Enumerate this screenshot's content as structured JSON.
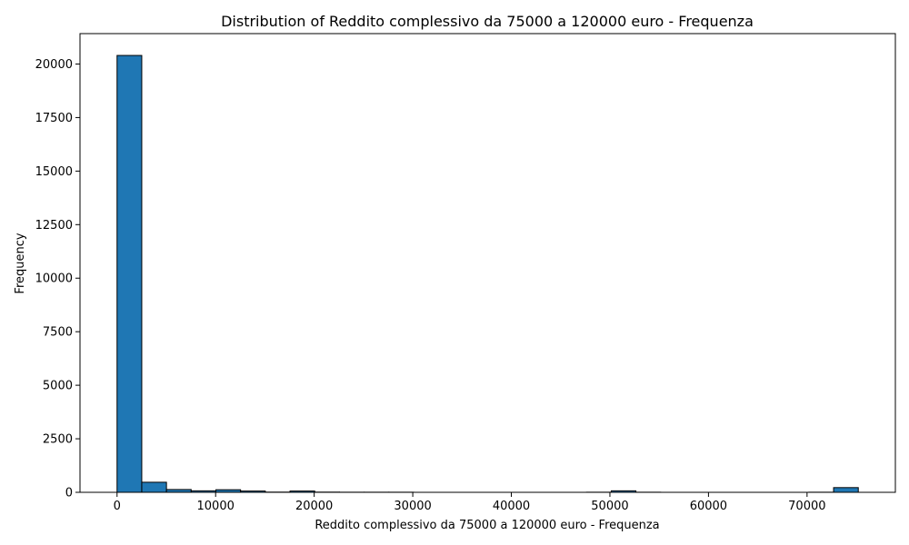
{
  "chart_data": {
    "type": "bar",
    "title": "Distribution of Reddito complessivo da 75000 a 120000 euro - Frequenza",
    "xlabel": "Reddito complessivo da 75000 a 120000 euro - Frequenza",
    "ylabel": "Frequency",
    "xlim": [
      -3760,
      78960
    ],
    "ylim": [
      0,
      21420
    ],
    "xticks": [
      0,
      10000,
      20000,
      30000,
      40000,
      50000,
      60000,
      70000
    ],
    "yticks": [
      0,
      2500,
      5000,
      7500,
      10000,
      12500,
      15000,
      17500,
      20000
    ],
    "bin_width": 2506.67,
    "bins": [
      {
        "x0": 0,
        "count": 20400
      },
      {
        "x0": 2506.67,
        "count": 470
      },
      {
        "x0": 5013.33,
        "count": 130
      },
      {
        "x0": 7520,
        "count": 70
      },
      {
        "x0": 10026.67,
        "count": 120
      },
      {
        "x0": 12533.33,
        "count": 60
      },
      {
        "x0": 15040,
        "count": 10
      },
      {
        "x0": 17546.67,
        "count": 60
      },
      {
        "x0": 20053.33,
        "count": 10
      },
      {
        "x0": 22560,
        "count": 5
      },
      {
        "x0": 25066.67,
        "count": 5
      },
      {
        "x0": 27573.33,
        "count": 5
      },
      {
        "x0": 30080,
        "count": 0
      },
      {
        "x0": 32586.67,
        "count": 0
      },
      {
        "x0": 35093.33,
        "count": 0
      },
      {
        "x0": 37600,
        "count": 0
      },
      {
        "x0": 40106.67,
        "count": 0
      },
      {
        "x0": 42613.33,
        "count": 0
      },
      {
        "x0": 45120,
        "count": 0
      },
      {
        "x0": 47626.67,
        "count": 5
      },
      {
        "x0": 50133.33,
        "count": 70
      },
      {
        "x0": 52640,
        "count": 5
      },
      {
        "x0": 55146.67,
        "count": 0
      },
      {
        "x0": 57653.33,
        "count": 0
      },
      {
        "x0": 60160,
        "count": 0
      },
      {
        "x0": 62666.67,
        "count": 0
      },
      {
        "x0": 65173.33,
        "count": 0
      },
      {
        "x0": 67680,
        "count": 0
      },
      {
        "x0": 70186.67,
        "count": 5
      },
      {
        "x0": 72693.33,
        "count": 220
      }
    ],
    "bar_color": "#1f77b4",
    "edge_color": "#000000",
    "grid": false,
    "legend": "none"
  }
}
